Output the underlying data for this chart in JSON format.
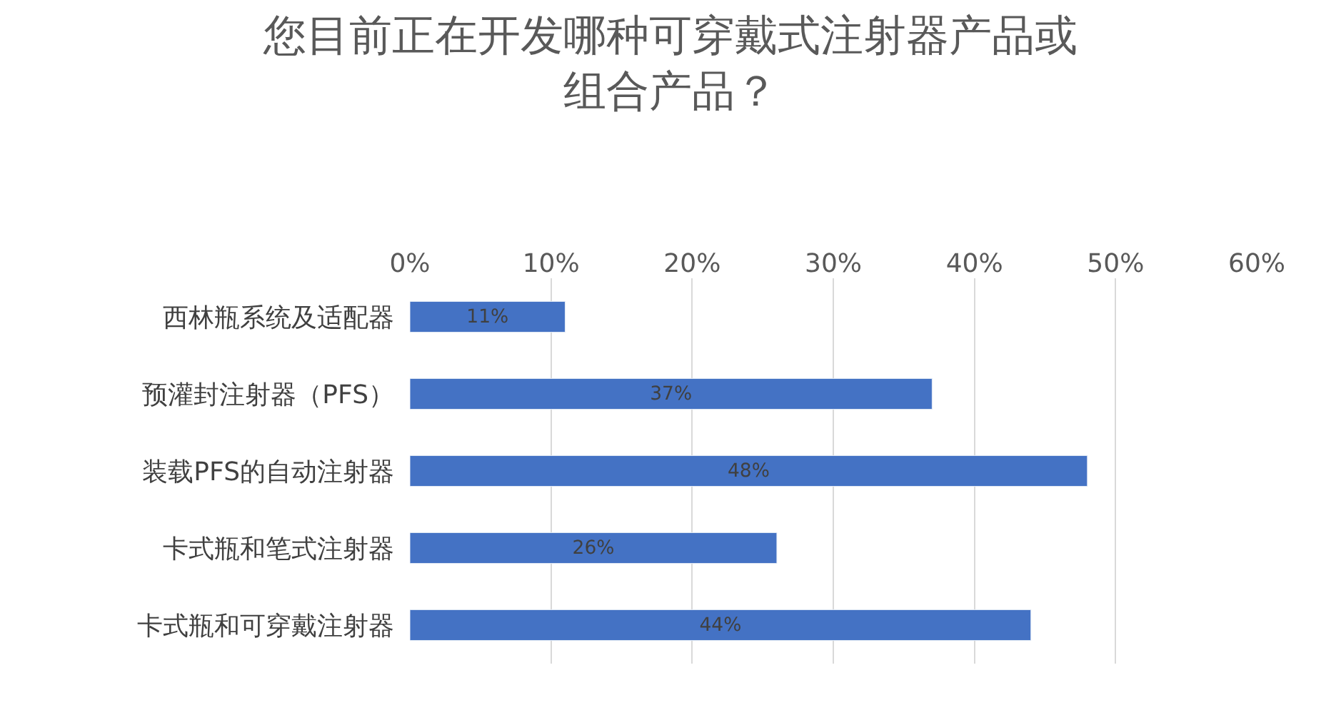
{
  "chart_data": {
    "type": "bar",
    "orientation": "horizontal",
    "title": "您目前正在开发哪种可穿戴式注射器产品或组合产品？",
    "categories": [
      "西林瓶系统及适配器",
      "预灌封注射器（PFS）",
      "装载PFS的自动注射器",
      "卡式瓶和笔式注射器",
      "卡式瓶和可穿戴注射器"
    ],
    "values": [
      11,
      37,
      48,
      26,
      44
    ],
    "value_labels": [
      "11%",
      "37%",
      "48%",
      "26%",
      "44%"
    ],
    "color": "#4472c4",
    "xlim": [
      0,
      60
    ],
    "xticks": [
      {
        "value": 0,
        "label": "0%"
      },
      {
        "value": 10,
        "label": "10%"
      },
      {
        "value": 20,
        "label": "20%"
      },
      {
        "value": 30,
        "label": "30%"
      },
      {
        "value": 40,
        "label": "40%"
      },
      {
        "value": 50,
        "label": "50%"
      },
      {
        "value": 60,
        "label": "60%"
      }
    ],
    "grid": "x"
  }
}
